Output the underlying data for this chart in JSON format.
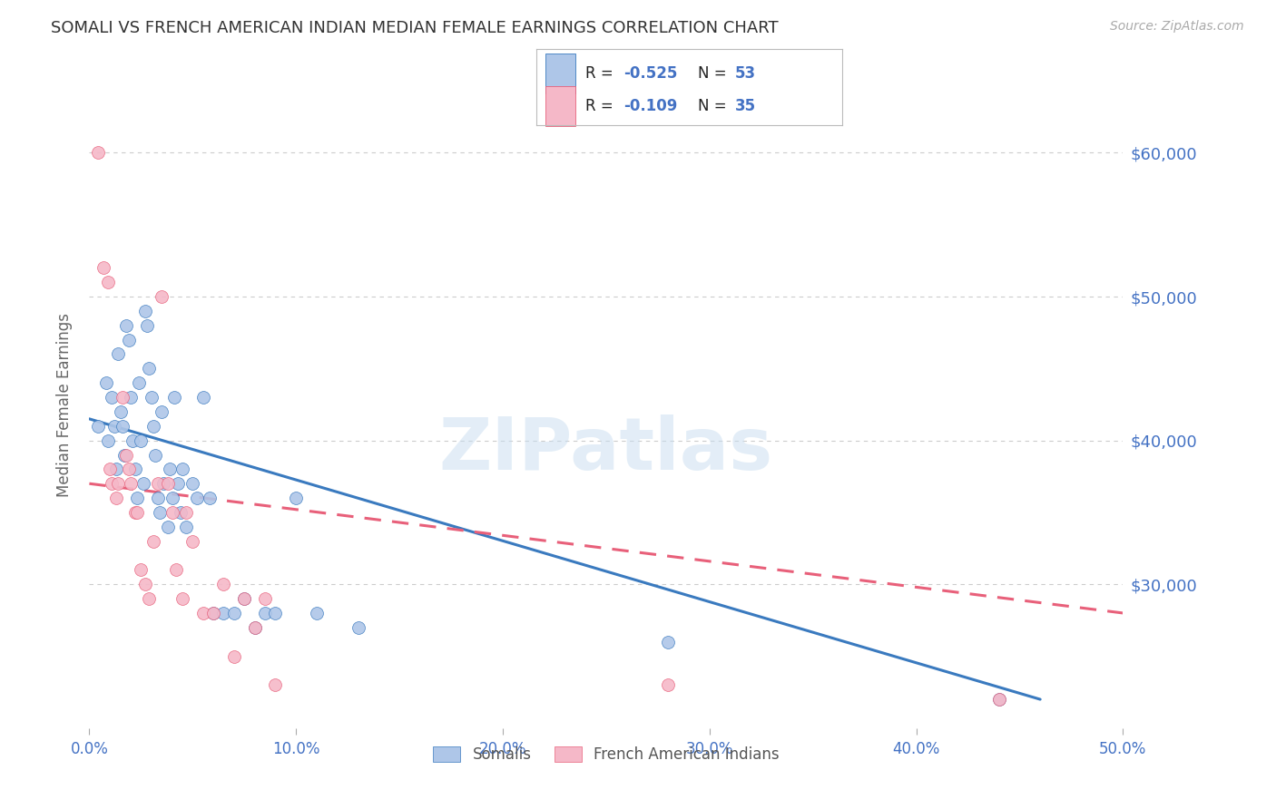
{
  "title": "SOMALI VS FRENCH AMERICAN INDIAN MEDIAN FEMALE EARNINGS CORRELATION CHART",
  "source": "Source: ZipAtlas.com",
  "ylabel": "Median Female Earnings",
  "watermark": "ZIPatlas",
  "xlim": [
    0.0,
    0.5
  ],
  "ylim": [
    20000,
    65000
  ],
  "xtick_labels": [
    "0.0%",
    "10.0%",
    "20.0%",
    "30.0%",
    "40.0%",
    "50.0%"
  ],
  "xtick_values": [
    0.0,
    0.1,
    0.2,
    0.3,
    0.4,
    0.5
  ],
  "ytick_labels": [
    "$30,000",
    "$40,000",
    "$50,000",
    "$60,000"
  ],
  "ytick_values": [
    30000,
    40000,
    50000,
    60000
  ],
  "somali_R": -0.525,
  "somali_N": 53,
  "french_R": -0.109,
  "french_N": 35,
  "somali_color": "#aec6e8",
  "french_color": "#f5b8c8",
  "somali_line_color": "#3a7abf",
  "french_line_color": "#e8607a",
  "somali_x": [
    0.004,
    0.008,
    0.009,
    0.011,
    0.012,
    0.013,
    0.014,
    0.015,
    0.016,
    0.017,
    0.018,
    0.019,
    0.02,
    0.021,
    0.022,
    0.023,
    0.024,
    0.025,
    0.026,
    0.027,
    0.028,
    0.029,
    0.03,
    0.031,
    0.032,
    0.033,
    0.034,
    0.035,
    0.036,
    0.038,
    0.039,
    0.04,
    0.041,
    0.043,
    0.044,
    0.045,
    0.047,
    0.05,
    0.052,
    0.055,
    0.058,
    0.06,
    0.065,
    0.07,
    0.075,
    0.08,
    0.085,
    0.09,
    0.1,
    0.11,
    0.13,
    0.28,
    0.44
  ],
  "somali_y": [
    41000,
    44000,
    40000,
    43000,
    41000,
    38000,
    46000,
    42000,
    41000,
    39000,
    48000,
    47000,
    43000,
    40000,
    38000,
    36000,
    44000,
    40000,
    37000,
    49000,
    48000,
    45000,
    43000,
    41000,
    39000,
    36000,
    35000,
    42000,
    37000,
    34000,
    38000,
    36000,
    43000,
    37000,
    35000,
    38000,
    34000,
    37000,
    36000,
    43000,
    36000,
    28000,
    28000,
    28000,
    29000,
    27000,
    28000,
    28000,
    36000,
    28000,
    27000,
    26000,
    22000
  ],
  "french_x": [
    0.004,
    0.007,
    0.009,
    0.01,
    0.011,
    0.013,
    0.014,
    0.016,
    0.018,
    0.019,
    0.02,
    0.022,
    0.023,
    0.025,
    0.027,
    0.029,
    0.031,
    0.033,
    0.035,
    0.038,
    0.04,
    0.042,
    0.045,
    0.047,
    0.05,
    0.055,
    0.06,
    0.065,
    0.07,
    0.075,
    0.08,
    0.085,
    0.09,
    0.28,
    0.44
  ],
  "french_y": [
    60000,
    52000,
    51000,
    38000,
    37000,
    36000,
    37000,
    43000,
    39000,
    38000,
    37000,
    35000,
    35000,
    31000,
    30000,
    29000,
    33000,
    37000,
    50000,
    37000,
    35000,
    31000,
    29000,
    35000,
    33000,
    28000,
    28000,
    30000,
    25000,
    29000,
    27000,
    29000,
    23000,
    23000,
    22000
  ],
  "somali_trend_x0": 0.0,
  "somali_trend_x1": 0.46,
  "somali_trend_y0": 41500,
  "somali_trend_y1": 22000,
  "french_trend_x0": 0.0,
  "french_trend_x1": 0.5,
  "french_trend_y0": 37000,
  "french_trend_y1": 28000,
  "background_color": "#ffffff",
  "grid_color": "#cccccc",
  "title_color": "#333333",
  "right_label_color": "#4472c4",
  "source_color": "#aaaaaa",
  "legend_label_color": "#4472c4"
}
